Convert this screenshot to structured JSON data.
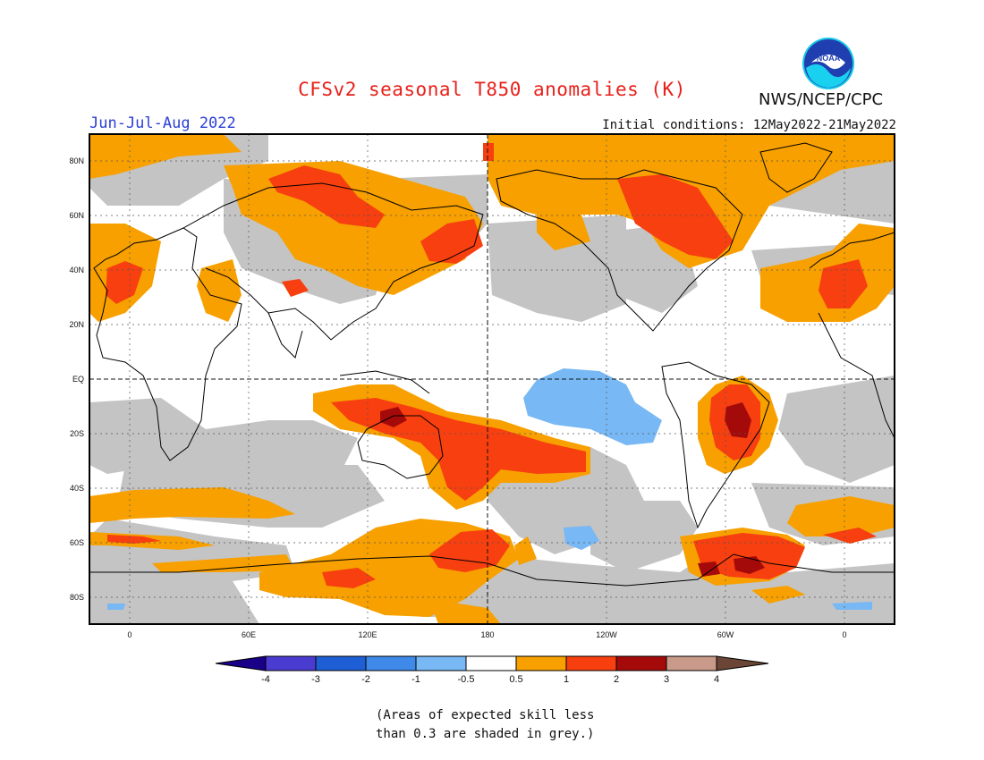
{
  "title": "CFSv2 seasonal T850 anomalies (K)",
  "season": "Jun-Jul-Aug 2022",
  "initial_conditions": "Initial conditions: 12May2022-21May2022",
  "agency": "NWS/NCEP/CPC",
  "logo_text": "NOAA",
  "footnote_line1": "(Areas of expected skill less",
  "footnote_line2": "than 0.3 are shaded in grey.)",
  "lat_labels": [
    "80N",
    "60N",
    "40N",
    "20N",
    "EQ",
    "20S",
    "40S",
    "60S",
    "80S"
  ],
  "lon_labels": [
    "0",
    "60E",
    "120E",
    "180",
    "120W",
    "60W",
    "0"
  ],
  "colorbar": {
    "labels": [
      "-4",
      "-3",
      "-2",
      "-1",
      "-0.5",
      "0.5",
      "1",
      "2",
      "3",
      "4"
    ],
    "colors": [
      "#1a0088",
      "#4a3cd0",
      "#1f5fd6",
      "#3f8ae8",
      "#78b8f4",
      "#ffffff",
      "#f7a000",
      "#f73f10",
      "#a50a0a",
      "#c99a8a",
      "#6b4637"
    ]
  },
  "skill_color": "#c4c4c4",
  "map_colors": {
    "warm_05_1": "#f7a000",
    "warm_1_2": "#f73f10",
    "warm_2_3": "#a50a0a",
    "cool_m1_m05": "#78b8f4",
    "grey_skill": "#c4c4c4"
  }
}
